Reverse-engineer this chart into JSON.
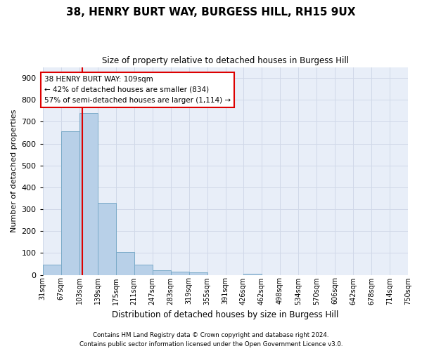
{
  "title": "38, HENRY BURT WAY, BURGESS HILL, RH15 9UX",
  "subtitle": "Size of property relative to detached houses in Burgess Hill",
  "xlabel": "Distribution of detached houses by size in Burgess Hill",
  "ylabel": "Number of detached properties",
  "footnote1": "Contains HM Land Registry data © Crown copyright and database right 2024.",
  "footnote2": "Contains public sector information licensed under the Open Government Licence v3.0.",
  "bin_edges": [
    31,
    67,
    103,
    139,
    175,
    211,
    247,
    283,
    319,
    355,
    391,
    426,
    462,
    498,
    534,
    570,
    606,
    642,
    678,
    714,
    750
  ],
  "bin_labels": [
    "31sqm",
    "67sqm",
    "103sqm",
    "139sqm",
    "175sqm",
    "211sqm",
    "247sqm",
    "283sqm",
    "319sqm",
    "355sqm",
    "391sqm",
    "426sqm",
    "462sqm",
    "498sqm",
    "534sqm",
    "570sqm",
    "606sqm",
    "642sqm",
    "678sqm",
    "714sqm",
    "750sqm"
  ],
  "bar_heights": [
    48,
    655,
    740,
    330,
    105,
    48,
    22,
    13,
    10,
    0,
    0,
    5,
    0,
    0,
    0,
    0,
    0,
    0,
    0,
    0
  ],
  "bar_color": "#b8d0e8",
  "bar_edge_color": "#7aaac8",
  "property_size": 109,
  "red_line_color": "#dd0000",
  "annotation_text_line1": "38 HENRY BURT WAY: 109sqm",
  "annotation_text_line2": "← 42% of detached houses are smaller (834)",
  "annotation_text_line3": "57% of semi-detached houses are larger (1,114) →",
  "annotation_box_facecolor": "#ffffff",
  "annotation_box_edgecolor": "#dd0000",
  "ylim": [
    0,
    950
  ],
  "yticks": [
    0,
    100,
    200,
    300,
    400,
    500,
    600,
    700,
    800,
    900
  ],
  "grid_color": "#d0d8e8",
  "figure_facecolor": "#ffffff",
  "axes_facecolor": "#e8eef8"
}
